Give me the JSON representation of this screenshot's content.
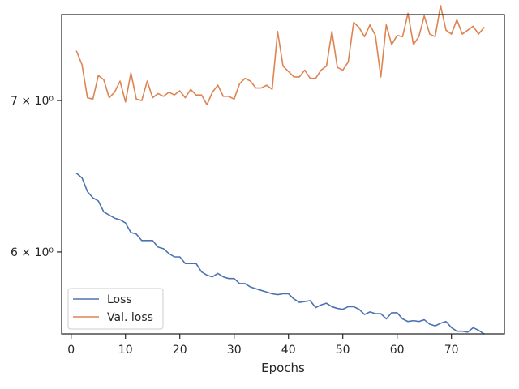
{
  "chart_data": {
    "type": "line",
    "xlabel": "Epochs",
    "ylabel": "",
    "xlim": [
      -1.75,
      79.75
    ],
    "ylim": [
      5.52,
      7.64
    ],
    "yscale": "log",
    "grid": false,
    "legend_position": "lower-left",
    "x_ticks": [
      0,
      10,
      20,
      30,
      40,
      50,
      60,
      70
    ],
    "y_ticks": [
      {
        "value": 6,
        "label": "6 × 10⁰"
      },
      {
        "value": 7,
        "label": "7 × 10⁰"
      }
    ],
    "x": [
      1,
      2,
      3,
      4,
      5,
      6,
      7,
      8,
      9,
      10,
      11,
      12,
      13,
      14,
      15,
      16,
      17,
      18,
      19,
      20,
      21,
      22,
      23,
      24,
      25,
      26,
      27,
      28,
      29,
      30,
      31,
      32,
      33,
      34,
      35,
      36,
      37,
      38,
      39,
      40,
      41,
      42,
      43,
      44,
      45,
      46,
      47,
      48,
      49,
      50,
      51,
      52,
      53,
      54,
      55,
      56,
      57,
      58,
      59,
      60,
      61,
      62,
      63,
      64,
      65,
      66,
      67,
      68,
      69,
      70,
      71,
      72,
      73,
      74,
      75,
      76
    ],
    "series": [
      {
        "name": "Loss",
        "color": "#4c72b0",
        "values": [
          6.5,
          6.47,
          6.38,
          6.34,
          6.32,
          6.25,
          6.23,
          6.21,
          6.2,
          6.18,
          6.12,
          6.11,
          6.07,
          6.07,
          6.07,
          6.03,
          6.02,
          5.99,
          5.97,
          5.97,
          5.93,
          5.93,
          5.93,
          5.88,
          5.86,
          5.85,
          5.87,
          5.85,
          5.84,
          5.84,
          5.81,
          5.81,
          5.79,
          5.78,
          5.77,
          5.76,
          5.75,
          5.745,
          5.75,
          5.75,
          5.72,
          5.7,
          5.705,
          5.71,
          5.67,
          5.685,
          5.695,
          5.675,
          5.665,
          5.66,
          5.675,
          5.675,
          5.66,
          5.63,
          5.645,
          5.635,
          5.635,
          5.605,
          5.64,
          5.64,
          5.605,
          5.59,
          5.595,
          5.59,
          5.6,
          5.575,
          5.565,
          5.58,
          5.59,
          5.555,
          5.535,
          5.535,
          5.53,
          5.555,
          5.54,
          5.52
        ]
      },
      {
        "name": "Val. loss",
        "color": "#dd8452",
        "values": [
          7.36,
          7.26,
          7.02,
          7.01,
          7.18,
          7.15,
          7.02,
          7.06,
          7.14,
          6.99,
          7.2,
          7.01,
          7.0,
          7.14,
          7.02,
          7.05,
          7.03,
          7.06,
          7.04,
          7.07,
          7.02,
          7.08,
          7.04,
          7.04,
          6.97,
          7.06,
          7.11,
          7.03,
          7.03,
          7.01,
          7.12,
          7.16,
          7.14,
          7.09,
          7.09,
          7.11,
          7.08,
          7.51,
          7.25,
          7.21,
          7.17,
          7.17,
          7.22,
          7.16,
          7.16,
          7.22,
          7.25,
          7.51,
          7.24,
          7.22,
          7.28,
          7.58,
          7.54,
          7.47,
          7.56,
          7.48,
          7.17,
          7.56,
          7.41,
          7.48,
          7.47,
          7.65,
          7.41,
          7.47,
          7.63,
          7.49,
          7.47,
          7.71,
          7.52,
          7.49,
          7.6,
          7.49,
          7.52,
          7.55,
          7.49,
          7.54
        ]
      }
    ]
  }
}
